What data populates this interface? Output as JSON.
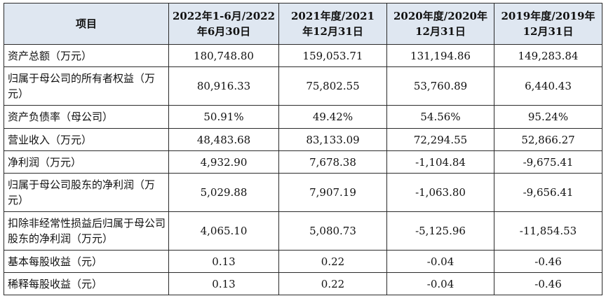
{
  "table": {
    "headers": [
      {
        "line1": "项目",
        "line2": ""
      },
      {
        "line1": "2022年1-6月/2022",
        "line2": "年6月30日"
      },
      {
        "line1": "2021年度/2021",
        "line2": "年12月31日"
      },
      {
        "line1": "2020年度/2020年",
        "line2": "12月31日"
      },
      {
        "line1": "2019年度/2019年",
        "line2": "12月31日"
      }
    ],
    "rows": [
      {
        "label": "资产总额（万元）",
        "values": [
          "180,748.80",
          "159,053.71",
          "131,194.86",
          "149,283.84"
        ]
      },
      {
        "label": "归属于母公司的所有者权益（万元）",
        "values": [
          "80,916.33",
          "75,802.55",
          "53,760.89",
          "6,440.43"
        ]
      },
      {
        "label": "资产负债率（母公司）",
        "values": [
          "50.91%",
          "49.42%",
          "54.56%",
          "95.24%"
        ]
      },
      {
        "label": "营业收入（万元）",
        "values": [
          "48,483.68",
          "83,133.09",
          "72,294.55",
          "52,866.27"
        ]
      },
      {
        "label": "净利润（万元）",
        "values": [
          "4,932.90",
          "7,678.38",
          "-1,104.84",
          "-9,675.41"
        ]
      },
      {
        "label": "归属于母公司股东的净利润（万元）",
        "values": [
          "5,029.88",
          "7,907.19",
          "-1,063.80",
          "-9,656.41"
        ]
      },
      {
        "label": "扣除非经常性损益后归属于母公司股东的净利润（万元）",
        "values": [
          "4,065.10",
          "5,080.73",
          "-5,125.96",
          "-11,854.53"
        ]
      },
      {
        "label": "基本每股收益（元）",
        "values": [
          "0.13",
          "0.22",
          "-0.04",
          "-0.46"
        ]
      },
      {
        "label": "稀释每股收益（元）",
        "values": [
          "0.13",
          "0.22",
          "-0.04",
          "-0.46"
        ]
      }
    ]
  }
}
